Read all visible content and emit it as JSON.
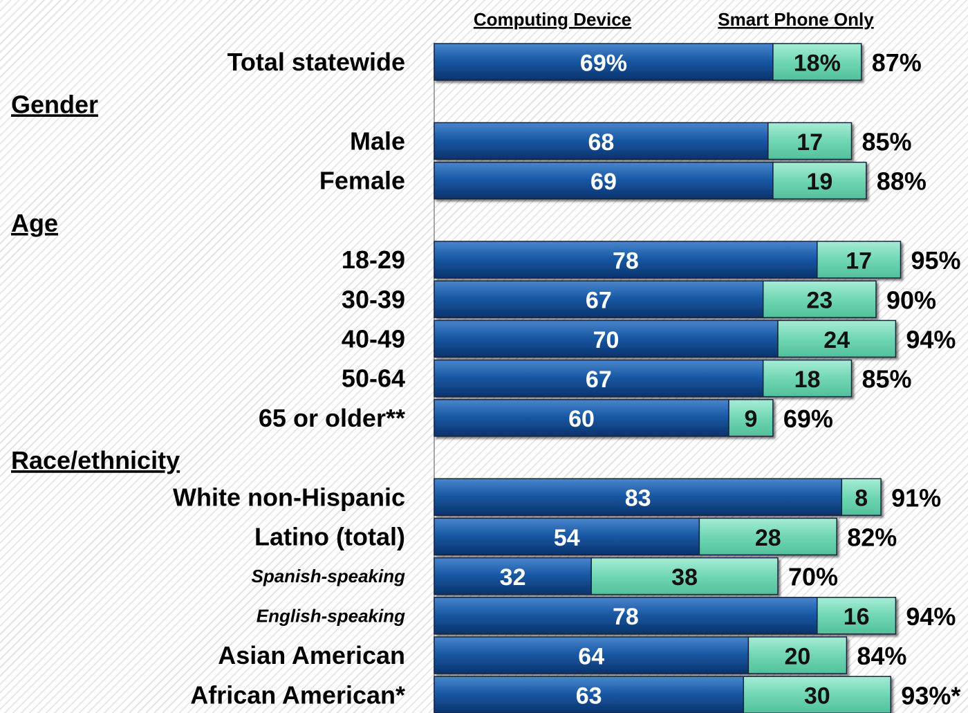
{
  "chart_data": {
    "type": "bar",
    "orientation": "horizontal",
    "stacked": true,
    "legend_position": "top",
    "series": [
      {
        "name": "Computing Device",
        "color": "#1a5aa6"
      },
      {
        "name": "Smart Phone Only",
        "color": "#70d6b4"
      }
    ],
    "groups": [
      {
        "rows": [
          {
            "label": "Total statewide",
            "values": [
              69,
              18
            ],
            "value_labels": [
              "69%",
              "18%"
            ],
            "total_label": "87%"
          }
        ]
      },
      {
        "heading": "Gender",
        "rows": [
          {
            "label": "Male",
            "values": [
              68,
              17
            ],
            "value_labels": [
              "68",
              "17"
            ],
            "total_label": "85%"
          },
          {
            "label": "Female",
            "values": [
              69,
              19
            ],
            "value_labels": [
              "69",
              "19"
            ],
            "total_label": "88%"
          }
        ]
      },
      {
        "heading": "Age",
        "rows": [
          {
            "label": "18-29",
            "values": [
              78,
              17
            ],
            "value_labels": [
              "78",
              "17"
            ],
            "total_label": "95%"
          },
          {
            "label": "30-39",
            "values": [
              67,
              23
            ],
            "value_labels": [
              "67",
              "23"
            ],
            "total_label": "90%"
          },
          {
            "label": "40-49",
            "values": [
              70,
              24
            ],
            "value_labels": [
              "70",
              "24"
            ],
            "total_label": "94%"
          },
          {
            "label": "50-64",
            "values": [
              67,
              18
            ],
            "value_labels": [
              "67",
              "18"
            ],
            "total_label": "85%"
          },
          {
            "label": "65 or older**",
            "values": [
              60,
              9
            ],
            "value_labels": [
              "60",
              "9"
            ],
            "total_label": "69%"
          }
        ]
      },
      {
        "heading": "Race/ethnicity",
        "rows": [
          {
            "label": "White non-Hispanic",
            "values": [
              83,
              8
            ],
            "value_labels": [
              "83",
              "8"
            ],
            "total_label": "91%"
          },
          {
            "label": "Latino (total)",
            "values": [
              54,
              28
            ],
            "value_labels": [
              "54",
              "28"
            ],
            "total_label": "82%"
          },
          {
            "label": "Spanish-speaking",
            "style": "italic",
            "values": [
              32,
              38
            ],
            "value_labels": [
              "32",
              "38"
            ],
            "total_label": "70%"
          },
          {
            "label": "English-speaking",
            "style": "italic",
            "values": [
              78,
              16
            ],
            "value_labels": [
              "78",
              "16"
            ],
            "total_label": "94%"
          },
          {
            "label": "Asian American",
            "values": [
              64,
              20
            ],
            "value_labels": [
              "64",
              "20"
            ],
            "total_label": "84%"
          },
          {
            "label": "African American*",
            "values": [
              63,
              30
            ],
            "value_labels": [
              "63",
              "30"
            ],
            "total_label": "93%*"
          }
        ]
      }
    ]
  }
}
